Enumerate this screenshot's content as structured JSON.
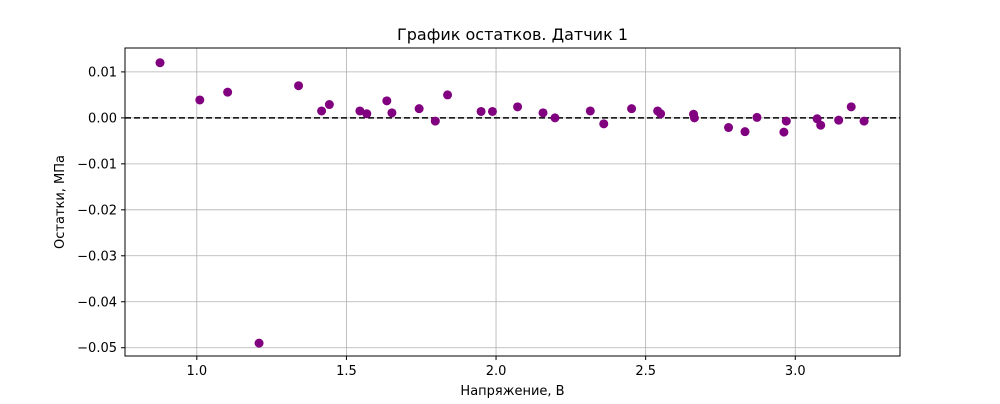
{
  "chart_data": {
    "type": "scatter",
    "title": "График остатков. Датчик 1",
    "xlabel": "Напряжение, В",
    "ylabel": "Остатки, МПа",
    "xlim": [
      0.76,
      3.35
    ],
    "ylim": [
      -0.0518,
      0.0152
    ],
    "xticks": [
      1.0,
      1.5,
      2.0,
      2.5,
      3.0
    ],
    "xtick_labels": [
      "1.0",
      "1.5",
      "2.0",
      "2.5",
      "3.0"
    ],
    "yticks": [
      0.01,
      0.0,
      -0.01,
      -0.02,
      -0.03,
      -0.04,
      -0.05
    ],
    "ytick_labels": [
      "0.01",
      "0.00",
      "−0.01",
      "−0.02",
      "−0.03",
      "−0.04",
      "−0.05"
    ],
    "grid": true,
    "reference_line": {
      "y": 0.0,
      "style": "dashed",
      "color": "#000000"
    },
    "marker_color": "#800080",
    "points": [
      {
        "x": 0.877,
        "y": 0.012
      },
      {
        "x": 1.01,
        "y": 0.0039
      },
      {
        "x": 1.103,
        "y": 0.0056
      },
      {
        "x": 1.208,
        "y": -0.049
      },
      {
        "x": 1.34,
        "y": 0.007
      },
      {
        "x": 1.417,
        "y": 0.0015
      },
      {
        "x": 1.443,
        "y": 0.0029
      },
      {
        "x": 1.545,
        "y": 0.0015
      },
      {
        "x": 1.568,
        "y": 0.0009
      },
      {
        "x": 1.635,
        "y": 0.0037
      },
      {
        "x": 1.652,
        "y": 0.0011
      },
      {
        "x": 1.743,
        "y": 0.002
      },
      {
        "x": 1.797,
        "y": -0.0007
      },
      {
        "x": 1.838,
        "y": 0.005
      },
      {
        "x": 1.95,
        "y": 0.0014
      },
      {
        "x": 1.988,
        "y": 0.0014
      },
      {
        "x": 2.072,
        "y": 0.0024
      },
      {
        "x": 2.157,
        "y": 0.0011
      },
      {
        "x": 2.197,
        "y": 0.0
      },
      {
        "x": 2.315,
        "y": 0.0015
      },
      {
        "x": 2.36,
        "y": -0.0013
      },
      {
        "x": 2.453,
        "y": 0.002
      },
      {
        "x": 2.54,
        "y": 0.0015
      },
      {
        "x": 2.55,
        "y": 0.0009
      },
      {
        "x": 2.66,
        "y": 0.0008
      },
      {
        "x": 2.663,
        "y": 0.0
      },
      {
        "x": 2.777,
        "y": -0.0021
      },
      {
        "x": 2.832,
        "y": -0.003
      },
      {
        "x": 2.872,
        "y": 0.0001
      },
      {
        "x": 2.962,
        "y": -0.0031
      },
      {
        "x": 2.97,
        "y": -0.0007
      },
      {
        "x": 3.073,
        "y": -0.0002
      },
      {
        "x": 3.085,
        "y": -0.0016
      },
      {
        "x": 3.145,
        "y": -0.0005
      },
      {
        "x": 3.187,
        "y": 0.0024
      },
      {
        "x": 3.23,
        "y": -0.0007
      }
    ]
  }
}
